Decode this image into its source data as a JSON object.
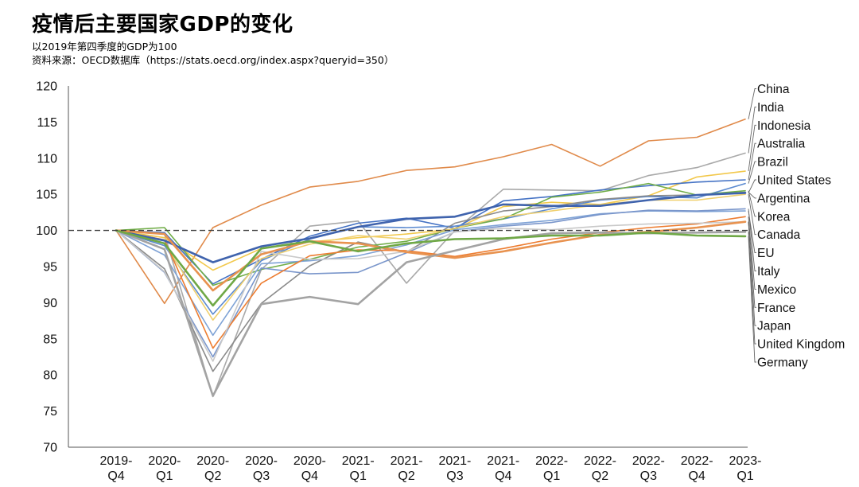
{
  "colors": {
    "axis": "#555555",
    "reference": "#404040",
    "leader": "#666666"
  },
  "chart_data": {
    "type": "line",
    "title": "疫情后主要国家GDP的变化",
    "subtitle": "以2019年第四季度的GDP为100",
    "source": "资料来源：OECD数据库（https://stats.oecd.org/index.aspx?queryid=350）",
    "xlabel": "",
    "ylabel": "",
    "ylim": [
      70,
      120
    ],
    "yticks": [
      "120",
      "115",
      "110",
      "105",
      "100",
      "95",
      "90",
      "85",
      "80",
      "75",
      "70"
    ],
    "reference_line": 100,
    "categories": [
      [
        "2019-",
        "Q4"
      ],
      [
        "2020-",
        "Q1"
      ],
      [
        "2020-",
        "Q2"
      ],
      [
        "2020-",
        "Q3"
      ],
      [
        "2020-",
        "Q4"
      ],
      [
        "2021-",
        "Q1"
      ],
      [
        "2021-",
        "Q2"
      ],
      [
        "2021-",
        "Q3"
      ],
      [
        "2021-",
        "Q4"
      ],
      [
        "2022-",
        "Q1"
      ],
      [
        "2022-",
        "Q2"
      ],
      [
        "2022-",
        "Q3"
      ],
      [
        "2022-",
        "Q4"
      ],
      [
        "2023-",
        "Q1"
      ]
    ],
    "series": [
      {
        "name": "China",
        "color": "#e08a4a",
        "width": 1.6,
        "values": [
          100,
          89.9,
          100.4,
          103.5,
          106.0,
          106.8,
          108.3,
          108.8,
          110.2,
          111.9,
          108.9,
          112.4,
          112.9,
          115.4
        ]
      },
      {
        "name": "India",
        "color": "#a9a9a9",
        "width": 1.6,
        "values": [
          100,
          99.5,
          77.0,
          94.6,
          100.6,
          101.3,
          92.7,
          100.0,
          105.7,
          105.6,
          105.5,
          107.6,
          108.7,
          110.7
        ]
      },
      {
        "name": "Indonesia",
        "color": "#f2c84b",
        "width": 1.6,
        "values": [
          100,
          99.0,
          94.5,
          97.5,
          98.4,
          99.0,
          99.5,
          100.2,
          103.3,
          103.9,
          103.6,
          104.8,
          107.4,
          108.2
        ]
      },
      {
        "name": "Australia",
        "color": "#4472c4",
        "width": 1.6,
        "values": [
          100,
          99.7,
          92.6,
          96.0,
          99.2,
          101.0,
          101.7,
          100.3,
          104.1,
          104.7,
          105.6,
          106.2,
          106.7,
          107.0
        ]
      },
      {
        "name": "Brazil",
        "color": "#5b8ad0",
        "width": 1.6,
        "values": [
          100,
          97.9,
          88.4,
          95.8,
          98.8,
          100.5,
          100.4,
          100.6,
          101.6,
          103.0,
          104.2,
          104.7,
          104.5,
          106.5
        ]
      },
      {
        "name": "United States",
        "color": "#3f63ad",
        "width": 2.6,
        "values": [
          100,
          98.6,
          95.6,
          97.8,
          98.9,
          100.5,
          101.6,
          101.9,
          103.6,
          103.4,
          103.4,
          104.2,
          104.9,
          105.2
        ]
      },
      {
        "name": "Argentina",
        "color": "#8a8a8a",
        "width": 1.6,
        "values": [
          100,
          94.7,
          80.5,
          89.9,
          95.1,
          98.4,
          97.0,
          101.0,
          102.7,
          103.3,
          104.3,
          104.8,
          104.9,
          105.3
        ]
      },
      {
        "name": "Korea",
        "color": "#70ad47",
        "width": 1.6,
        "values": [
          100,
          100.4,
          92.4,
          94.6,
          96.0,
          97.7,
          98.5,
          100.3,
          101.6,
          104.6,
          105.3,
          106.5,
          104.9,
          105.5
        ]
      },
      {
        "name": "Canada",
        "color": "#f0d06e",
        "width": 1.6,
        "values": [
          100,
          98.2,
          87.6,
          96.1,
          98.1,
          99.3,
          98.8,
          100.3,
          101.9,
          102.7,
          103.6,
          104.2,
          104.2,
          105.0
        ]
      },
      {
        "name": "EU",
        "color": "#7fa3d6",
        "width": 1.6,
        "values": [
          100,
          96.6,
          85.5,
          95.4,
          95.8,
          96.5,
          98.0,
          100.1,
          100.8,
          101.4,
          102.3,
          102.7,
          102.6,
          102.7
        ]
      },
      {
        "name": "Italy",
        "color": "#7a96cb",
        "width": 1.6,
        "values": [
          100,
          94.2,
          82.5,
          94.8,
          94.0,
          94.2,
          96.9,
          99.8,
          100.6,
          101.1,
          102.2,
          102.8,
          102.7,
          103.0
        ]
      },
      {
        "name": "Mexico",
        "color": "#ed7d31",
        "width": 1.6,
        "values": [
          100,
          98.7,
          83.7,
          92.7,
          96.5,
          97.3,
          97.2,
          96.4,
          97.5,
          98.8,
          99.7,
          100.4,
          100.9,
          101.9
        ]
      },
      {
        "name": "France",
        "color": "#c9c9c9",
        "width": 1.6,
        "values": [
          100,
          94.3,
          81.9,
          97.1,
          96.0,
          96.1,
          97.1,
          99.8,
          100.3,
          100.1,
          100.6,
          100.9,
          101.0,
          101.2
        ]
      },
      {
        "name": "Japan",
        "color": "#e8924f",
        "width": 2.6,
        "values": [
          100,
          99.5,
          91.7,
          96.7,
          98.5,
          98.2,
          97.0,
          96.2,
          97.1,
          98.3,
          99.4,
          99.8,
          100.4,
          101.2
        ]
      },
      {
        "name": "United Kingdom",
        "color": "#a3a3a3",
        "width": 2.6,
        "values": [
          100,
          97.4,
          77.1,
          89.8,
          90.8,
          89.8,
          95.6,
          97.2,
          98.8,
          99.6,
          99.7,
          99.6,
          99.7,
          99.8
        ]
      },
      {
        "name": "Germany",
        "color": "#6fa846",
        "width": 2.6,
        "values": [
          100,
          98.2,
          89.6,
          97.5,
          98.5,
          97.1,
          98.2,
          98.8,
          98.9,
          99.3,
          99.3,
          99.7,
          99.3,
          99.2
        ]
      }
    ]
  }
}
